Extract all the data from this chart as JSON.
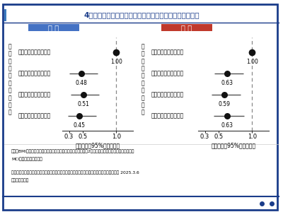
{
  "title": "4つの運動習慣グループと老年期うつ症状の有病率の関連",
  "title_color": "#1a3c8a",
  "title_fontsize": 7.5,
  "background_color": "#f0f0f0",
  "panel_color": "#ffffff",
  "border_color": "#1a3c8a",
  "male_label": "男 性",
  "female_label": "女 性",
  "male_label_bg": "#4472c4",
  "female_label_bg": "#c0392b",
  "ylabel_text": "運\n動\n習\n慣\nの\n組\nみ\n合\nわ\nせ",
  "xlabel_text": "オッズ比（95%信頼区間）",
  "categories": [
    "中高なし、高齢期なし",
    "中高なし、高齢期あり",
    "中高あり、高齢期なし",
    "中高あり、高齢期あり"
  ],
  "male_or": [
    1.0,
    0.48,
    0.51,
    0.45
  ],
  "male_ci_lo": [
    1.0,
    0.3,
    0.33,
    0.28
  ],
  "male_ci_hi": [
    1.0,
    0.72,
    0.75,
    0.7
  ],
  "female_or": [
    1.0,
    0.63,
    0.59,
    0.63
  ],
  "female_ci_lo": [
    1.0,
    0.44,
    0.4,
    0.43
  ],
  "female_ci_hi": [
    1.0,
    0.87,
    0.83,
    0.88
  ],
  "xlim_lo": 0.2,
  "xlim_hi": 1.25,
  "xticks": [
    0.3,
    0.5,
    1.0
  ],
  "xtick_labels": [
    "0.3",
    "0.5",
    "1.0"
  ],
  "footnote1": "年齢、BMI、教育年数、アルコール摂取量、ブリンクマン指数、2型糖尿病の有無、脳血管疾患の有無、",
  "footnote2": "MCIの有無と独居で調整",
  "source1": "（出典：「中学・高校生期と高齢期の運動習慣が高齢期の精神疾患リスクを低減」順天堂大学 2025.3.6",
  "source2": "　　より作図）",
  "dot_color": "#111111",
  "line_color": "#555555",
  "dashed_color": "#888888",
  "border_left_color": "#3a7abf"
}
